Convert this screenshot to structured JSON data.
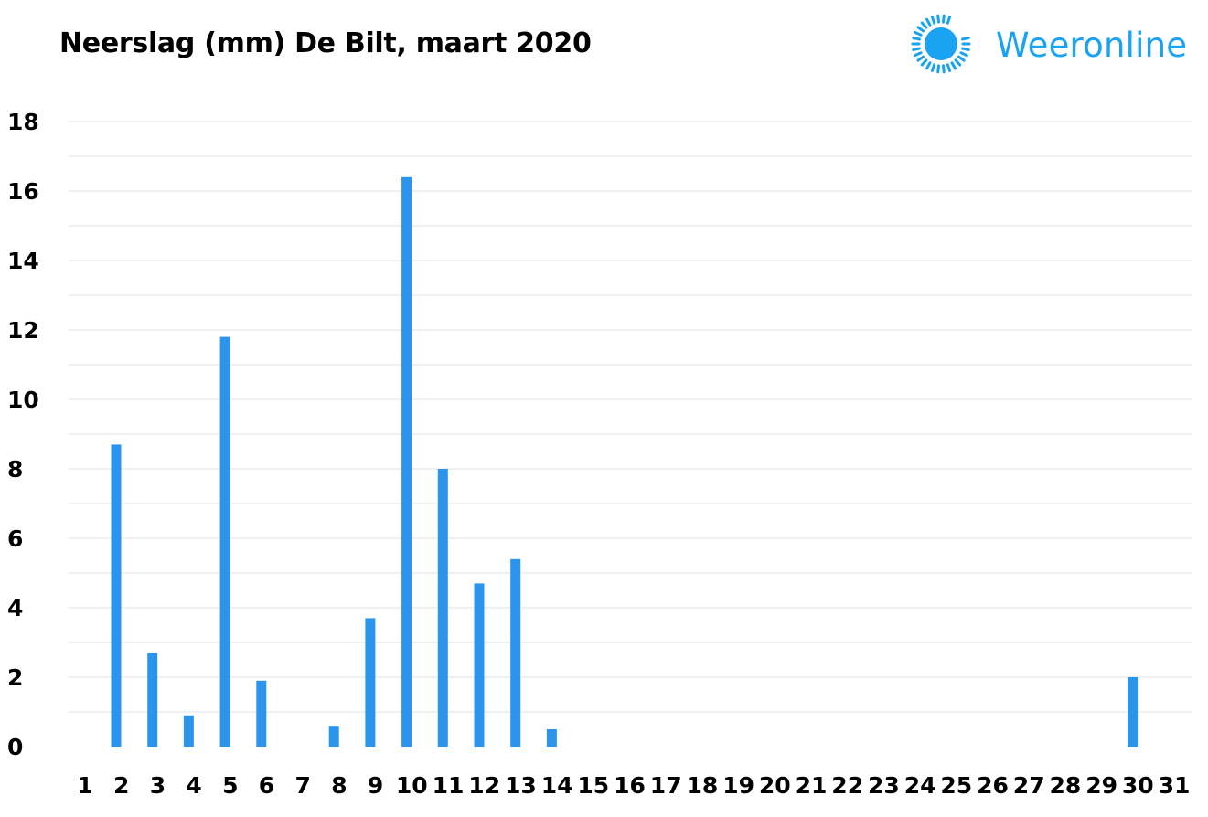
{
  "brand": {
    "name": "Weeronline",
    "icon": "sun-icon",
    "color": "#1aa3f0"
  },
  "chart_data": {
    "type": "bar",
    "title": "Neerslag (mm) De Bilt, maart 2020",
    "xlabel": "",
    "ylabel": "",
    "categories": [
      "1",
      "2",
      "3",
      "4",
      "5",
      "6",
      "7",
      "8",
      "9",
      "10",
      "11",
      "12",
      "13",
      "14",
      "15",
      "16",
      "17",
      "18",
      "19",
      "20",
      "21",
      "22",
      "23",
      "24",
      "25",
      "26",
      "27",
      "28",
      "29",
      "30",
      "31"
    ],
    "values": [
      0,
      8.7,
      2.7,
      0.9,
      11.8,
      1.9,
      0,
      0.6,
      3.7,
      16.4,
      8.0,
      4.7,
      5.4,
      0.5,
      0,
      0,
      0,
      0,
      0,
      0,
      0,
      0,
      0,
      0,
      0,
      0,
      0,
      0,
      0,
      2.0,
      0
    ],
    "ylim": [
      0,
      18
    ],
    "yticks": [
      0,
      2,
      4,
      6,
      8,
      10,
      12,
      14,
      16,
      18
    ],
    "grid": true,
    "legend": "none",
    "bar_color": "#2b95ee"
  }
}
